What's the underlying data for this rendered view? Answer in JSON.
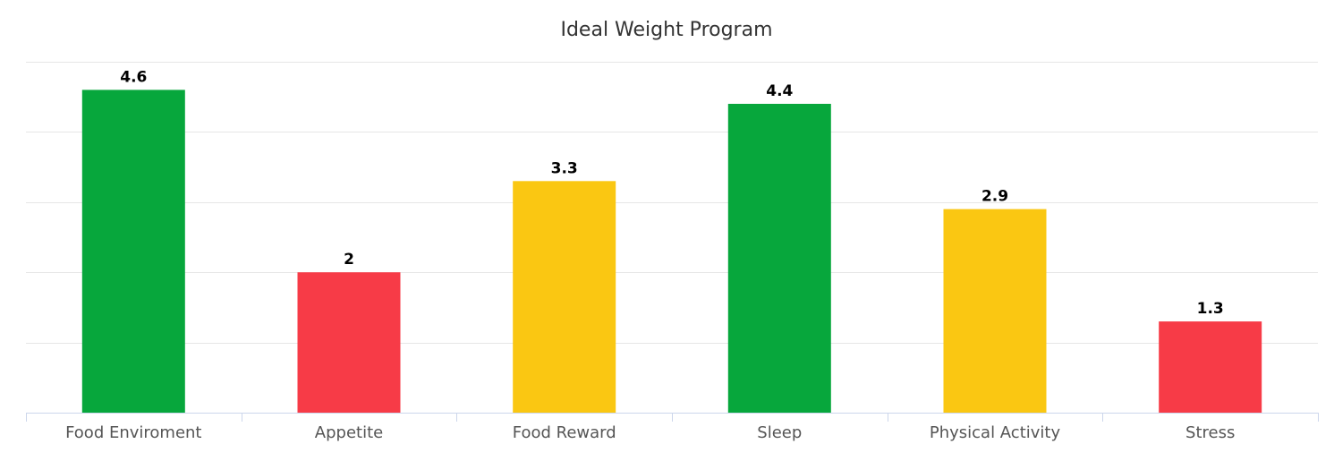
{
  "chart_data": {
    "type": "bar",
    "title": "Ideal Weight Program",
    "xlabel": "",
    "ylabel": "",
    "ylim": [
      0,
      5
    ],
    "grid": true,
    "categories": [
      "Food Enviroment",
      "Appetite",
      "Food Reward",
      "Sleep",
      "Physical Activity",
      "Stress"
    ],
    "values": [
      4.6,
      2,
      3.3,
      4.4,
      2.9,
      1.3
    ],
    "data_labels": [
      "4.6",
      "2",
      "3.3",
      "4.4",
      "2.9",
      "1.3"
    ],
    "bar_colors": [
      "#07a73c",
      "#f73b47",
      "#fac712",
      "#07a73c",
      "#fac712",
      "#f73b47"
    ]
  }
}
